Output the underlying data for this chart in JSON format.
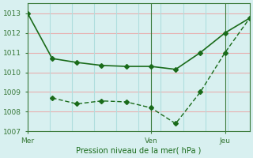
{
  "line1_x": [
    0,
    1,
    2,
    3,
    4,
    5,
    6,
    7,
    8,
    9
  ],
  "line1_y": [
    1013.0,
    1010.7,
    1010.5,
    1010.35,
    1010.3,
    1010.3,
    1010.15,
    1011.0,
    1012.0,
    1012.75
  ],
  "line2_x": [
    1,
    2,
    3,
    4,
    5,
    6,
    7,
    8,
    9
  ],
  "line2_y": [
    1008.7,
    1008.4,
    1008.55,
    1008.5,
    1008.2,
    1007.4,
    1009.0,
    1011.0,
    1012.75
  ],
  "line_color": "#1a6b1a",
  "bg_color": "#d8f0f0",
  "grid_h_color": "#e8b0b0",
  "grid_v_color": "#b0dede",
  "ylim": [
    1007,
    1013.5
  ],
  "yticks": [
    1007,
    1008,
    1009,
    1010,
    1011,
    1012,
    1013
  ],
  "xtick_positions": [
    0,
    5,
    8
  ],
  "xtick_labels": [
    "Mer",
    "Ven",
    "Jeu"
  ],
  "xlabel": "Pression niveau de la mer( hPa )",
  "xlabel_color": "#1a6b1a",
  "axis_color": "#3a7a3a",
  "vline_positions": [
    5,
    8
  ],
  "marker_style": "D",
  "marker_size": 3
}
